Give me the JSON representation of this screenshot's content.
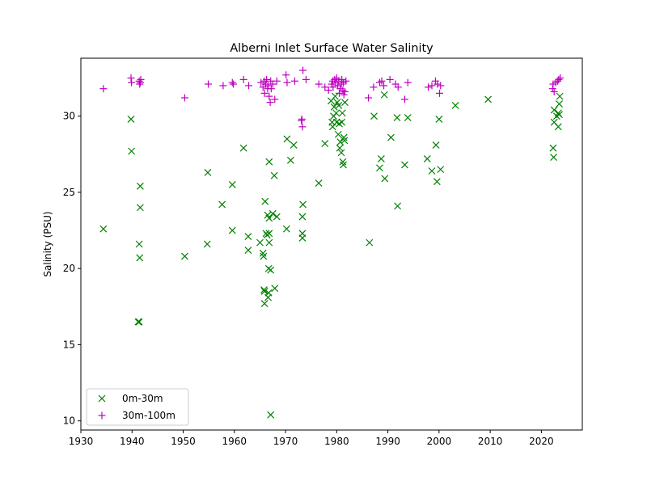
{
  "chart_data": {
    "type": "scatter",
    "title": "Alberni Inlet Surface Water Salinity",
    "xlabel": "",
    "ylabel": "Salinity (PSU)",
    "xlim": [
      1930,
      2028
    ],
    "ylim": [
      9.4,
      33.8
    ],
    "xticks": [
      1930,
      1940,
      1950,
      1960,
      1970,
      1980,
      1990,
      2000,
      2010,
      2020
    ],
    "yticks": [
      10,
      15,
      20,
      25,
      30
    ],
    "grid": false,
    "legend": "lower-left",
    "series": [
      {
        "name": "0m-30m",
        "marker": "x",
        "color": "#008000",
        "points": [
          [
            1934.4,
            22.6
          ],
          [
            1939.8,
            29.8
          ],
          [
            1939.9,
            27.7
          ],
          [
            1941.2,
            16.5
          ],
          [
            1941.4,
            16.5
          ],
          [
            1941.4,
            21.6
          ],
          [
            1941.5,
            20.7
          ],
          [
            1941.6,
            25.4
          ],
          [
            1941.6,
            24.0
          ],
          [
            1950.3,
            20.8
          ],
          [
            1954.7,
            21.6
          ],
          [
            1954.8,
            26.3
          ],
          [
            1957.6,
            24.2
          ],
          [
            1959.6,
            25.5
          ],
          [
            1959.6,
            22.5
          ],
          [
            1961.8,
            27.9
          ],
          [
            1962.7,
            21.2
          ],
          [
            1962.7,
            22.1
          ],
          [
            1965.0,
            21.7
          ],
          [
            1965.6,
            21.0
          ],
          [
            1965.7,
            20.8
          ],
          [
            1965.8,
            18.6
          ],
          [
            1966.0,
            24.4
          ],
          [
            1965.9,
            17.7
          ],
          [
            1965.9,
            18.5
          ],
          [
            1966.2,
            22.3
          ],
          [
            1966.4,
            22.2
          ],
          [
            1966.5,
            23.5
          ],
          [
            1966.6,
            18.1
          ],
          [
            1966.8,
            21.7
          ],
          [
            1966.7,
            20.0
          ],
          [
            1966.8,
            23.3
          ],
          [
            1967.1,
            19.9
          ],
          [
            1966.8,
            27.0
          ],
          [
            1966.8,
            22.3
          ],
          [
            1967.1,
            10.4
          ],
          [
            1966.7,
            18.4
          ],
          [
            1967.5,
            23.6
          ],
          [
            1967.8,
            26.1
          ],
          [
            1967.9,
            18.7
          ],
          [
            1968.3,
            23.4
          ],
          [
            1970.2,
            22.6
          ],
          [
            1970.3,
            28.5
          ],
          [
            1971.0,
            27.1
          ],
          [
            1971.6,
            28.1
          ],
          [
            1973.3,
            22.0
          ],
          [
            1973.3,
            22.3
          ],
          [
            1973.3,
            23.4
          ],
          [
            1973.4,
            24.2
          ],
          [
            1976.5,
            25.6
          ],
          [
            1977.7,
            28.2
          ],
          [
            1978.9,
            31.0
          ],
          [
            1979.1,
            29.6
          ],
          [
            1979.2,
            29.3
          ],
          [
            1979.4,
            30.0
          ],
          [
            1979.5,
            30.6
          ],
          [
            1979.7,
            31.3
          ],
          [
            1979.9,
            30.2
          ],
          [
            1980.0,
            29.6
          ],
          [
            1980.1,
            30.9
          ],
          [
            1980.3,
            28.8
          ],
          [
            1980.4,
            30.7
          ],
          [
            1980.5,
            29.5
          ],
          [
            1980.6,
            27.9
          ],
          [
            1980.7,
            28.3
          ],
          [
            1980.9,
            27.6
          ],
          [
            1981.0,
            29.6
          ],
          [
            1981.1,
            30.2
          ],
          [
            1981.2,
            27.0
          ],
          [
            1981.3,
            26.8
          ],
          [
            1981.4,
            28.6
          ],
          [
            1981.5,
            28.4
          ],
          [
            1981.6,
            30.9
          ],
          [
            1986.4,
            21.7
          ],
          [
            1987.3,
            30.0
          ],
          [
            1988.4,
            26.6
          ],
          [
            1988.7,
            27.2
          ],
          [
            1989.4,
            25.9
          ],
          [
            1989.3,
            31.4
          ],
          [
            1990.6,
            28.6
          ],
          [
            1991.8,
            29.9
          ],
          [
            1991.9,
            24.1
          ],
          [
            1993.3,
            26.8
          ],
          [
            1993.9,
            29.9
          ],
          [
            1997.7,
            27.2
          ],
          [
            1998.6,
            26.4
          ],
          [
            1999.4,
            28.1
          ],
          [
            1999.6,
            25.7
          ],
          [
            2000.0,
            29.8
          ],
          [
            2000.3,
            26.5
          ],
          [
            2003.2,
            30.7
          ],
          [
            2009.6,
            31.1
          ],
          [
            2022.3,
            27.9
          ],
          [
            2022.4,
            27.3
          ],
          [
            2022.5,
            29.6
          ],
          [
            2022.5,
            30.4
          ],
          [
            2023.0,
            30.0
          ],
          [
            2023.3,
            29.3
          ],
          [
            2023.3,
            30.2
          ],
          [
            2023.5,
            30.8
          ],
          [
            2023.6,
            31.3
          ],
          [
            2023.5,
            30.1
          ]
        ]
      },
      {
        "name": "30m-100m",
        "marker": "+",
        "color": "#bf00bf",
        "points": [
          [
            1934.4,
            31.8
          ],
          [
            1939.8,
            32.5
          ],
          [
            1939.9,
            32.2
          ],
          [
            1941.4,
            32.3
          ],
          [
            1941.5,
            32.1
          ],
          [
            1941.7,
            32.4
          ],
          [
            1941.6,
            32.2
          ],
          [
            1950.3,
            31.2
          ],
          [
            1954.9,
            32.1
          ],
          [
            1957.8,
            32.0
          ],
          [
            1959.6,
            32.2
          ],
          [
            1959.8,
            32.1
          ],
          [
            1961.8,
            32.4
          ],
          [
            1962.8,
            32.0
          ],
          [
            1965.2,
            32.2
          ],
          [
            1965.6,
            31.9
          ],
          [
            1965.8,
            32.3
          ],
          [
            1965.9,
            31.5
          ],
          [
            1966.1,
            32.1
          ],
          [
            1966.3,
            32.4
          ],
          [
            1966.5,
            31.8
          ],
          [
            1966.6,
            32.0
          ],
          [
            1966.8,
            31.3
          ],
          [
            1967.0,
            30.9
          ],
          [
            1967.1,
            32.3
          ],
          [
            1967.2,
            31.8
          ],
          [
            1967.5,
            32.1
          ],
          [
            1967.9,
            31.1
          ],
          [
            1968.3,
            32.3
          ],
          [
            1970.1,
            32.7
          ],
          [
            1970.3,
            32.2
          ],
          [
            1971.8,
            32.3
          ],
          [
            1973.1,
            29.7
          ],
          [
            1973.2,
            29.8
          ],
          [
            1973.3,
            29.3
          ],
          [
            1973.4,
            33.0
          ],
          [
            1974.0,
            32.4
          ],
          [
            1976.5,
            32.1
          ],
          [
            1977.7,
            31.9
          ],
          [
            1978.4,
            31.7
          ],
          [
            1979.0,
            32.1
          ],
          [
            1979.2,
            32.3
          ],
          [
            1979.3,
            31.9
          ],
          [
            1979.6,
            32.4
          ],
          [
            1979.8,
            32.2
          ],
          [
            1980.0,
            32.5
          ],
          [
            1980.2,
            32.0
          ],
          [
            1980.4,
            32.3
          ],
          [
            1980.5,
            31.5
          ],
          [
            1980.7,
            31.8
          ],
          [
            1980.9,
            32.1
          ],
          [
            1981.0,
            32.4
          ],
          [
            1981.2,
            31.7
          ],
          [
            1981.3,
            32.2
          ],
          [
            1981.4,
            31.4
          ],
          [
            1981.6,
            31.6
          ],
          [
            1981.8,
            32.3
          ],
          [
            1986.2,
            31.2
          ],
          [
            1987.2,
            31.9
          ],
          [
            1988.4,
            32.2
          ],
          [
            1988.8,
            32.3
          ],
          [
            1989.2,
            32.0
          ],
          [
            1990.4,
            32.4
          ],
          [
            1991.5,
            32.1
          ],
          [
            1992.0,
            31.9
          ],
          [
            1993.3,
            31.1
          ],
          [
            1993.9,
            32.2
          ],
          [
            1997.9,
            31.9
          ],
          [
            1998.6,
            32.0
          ],
          [
            1999.3,
            32.3
          ],
          [
            1999.7,
            32.1
          ],
          [
            2000.1,
            31.5
          ],
          [
            2000.3,
            32.0
          ],
          [
            2022.2,
            31.8
          ],
          [
            2022.3,
            32.1
          ],
          [
            2022.5,
            31.6
          ],
          [
            2022.8,
            32.2
          ],
          [
            2023.2,
            32.3
          ],
          [
            2023.4,
            32.4
          ],
          [
            2023.7,
            32.5
          ]
        ]
      }
    ]
  }
}
